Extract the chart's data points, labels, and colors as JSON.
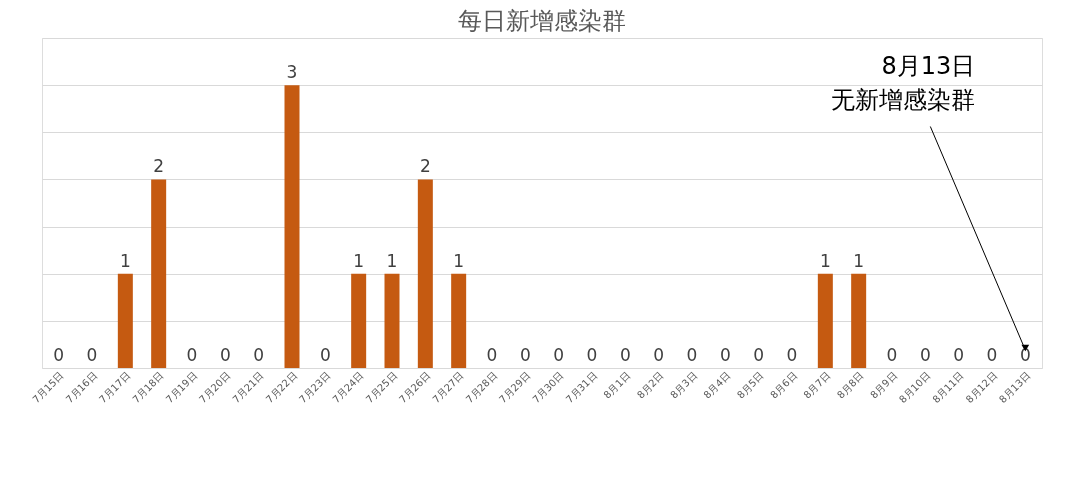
{
  "chart_data": {
    "type": "bar",
    "title": "每日新增感染群",
    "categories": [
      "7月15日",
      "7月16日",
      "7月17日",
      "7月18日",
      "7月19日",
      "7月20日",
      "7月21日",
      "7月22日",
      "7月23日",
      "7月24日",
      "7月25日",
      "7月26日",
      "7月27日",
      "7月28日",
      "7月29日",
      "7月30日",
      "7月31日",
      "8月1日",
      "8月2日",
      "8月3日",
      "8月4日",
      "8月5日",
      "8月6日",
      "8月7日",
      "8月8日",
      "8月9日",
      "8月10日",
      "8月11日",
      "8月12日",
      "8月13日"
    ],
    "values": [
      0,
      0,
      1,
      2,
      0,
      0,
      0,
      3,
      0,
      1,
      1,
      2,
      1,
      0,
      0,
      0,
      0,
      0,
      0,
      0,
      0,
      0,
      0,
      1,
      1,
      0,
      0,
      0,
      0,
      0
    ],
    "color": "#c55a11",
    "ylim": [
      0,
      3.5
    ],
    "yticks": [
      {
        "value": 0,
        "label": null
      },
      {
        "value": 0.5,
        "label": null
      },
      {
        "value": 1,
        "label": null
      },
      {
        "value": 1.5,
        "label": null
      },
      {
        "value": 2,
        "label": null
      },
      {
        "value": 2.5,
        "label": null
      },
      {
        "value": 3,
        "label": null
      },
      {
        "value": 3.5,
        "label": null
      }
    ],
    "grid": "y",
    "tick_labels": "x",
    "data_labels": true,
    "annotations": [
      "8月13日",
      "无新增感染群"
    ]
  }
}
